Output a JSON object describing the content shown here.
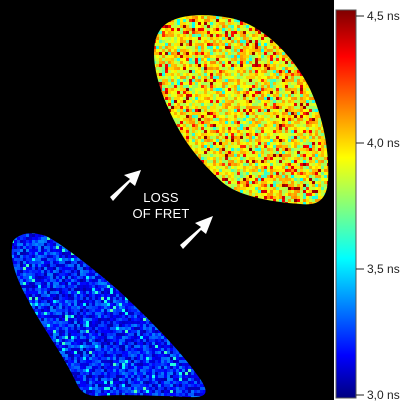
{
  "image": {
    "annotation_line1": "LOSS",
    "annotation_line2": "OF FRET",
    "arrows": [
      "arrow",
      "arrow"
    ],
    "colors": {
      "background": "#000000",
      "frame": "#ffffff"
    }
  },
  "colorbar": {
    "unit": "ns",
    "ticks": [
      "4,5 ns",
      "4,0 ns",
      "3,5 ns",
      "3,0 ns"
    ],
    "range": [
      3.0,
      4.5
    ],
    "colormap": "jet"
  }
}
